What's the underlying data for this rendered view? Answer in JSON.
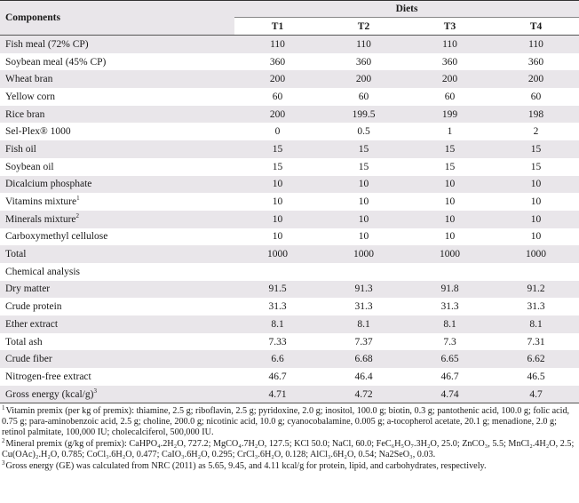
{
  "table": {
    "components_header": "Components",
    "diets_header": "Diets",
    "diet_columns": [
      "T1",
      "T2",
      "T3",
      "T4"
    ],
    "rows": [
      {
        "label": "Fish meal (72% CP)",
        "values": [
          "110",
          "110",
          "110",
          "110"
        ]
      },
      {
        "label": "Soybean meal (45% CP)",
        "values": [
          "360",
          "360",
          "360",
          "360"
        ]
      },
      {
        "label": "Wheat bran",
        "values": [
          "200",
          "200",
          "200",
          "200"
        ]
      },
      {
        "label": "Yellow corn",
        "values": [
          "60",
          "60",
          "60",
          "60"
        ]
      },
      {
        "label": "Rice bran",
        "values": [
          "200",
          "199.5",
          "199",
          "198"
        ]
      },
      {
        "label": "Sel-Plex® 1000",
        "values": [
          "0",
          "0.5",
          "1",
          "2"
        ]
      },
      {
        "label": "Fish oil",
        "values": [
          "15",
          "15",
          "15",
          "15"
        ]
      },
      {
        "label": "Soybean oil",
        "values": [
          "15",
          "15",
          "15",
          "15"
        ]
      },
      {
        "label": "Dicalcium phosphate",
        "values": [
          "10",
          "10",
          "10",
          "10"
        ]
      },
      {
        "label": "Vitamins mixture",
        "sup": "1",
        "values": [
          "10",
          "10",
          "10",
          "10"
        ]
      },
      {
        "label": "Minerals mixture",
        "sup": "2",
        "values": [
          "10",
          "10",
          "10",
          "10"
        ]
      },
      {
        "label": "Carboxymethyl cellulose",
        "values": [
          "10",
          "10",
          "10",
          "10"
        ]
      },
      {
        "label": "Total",
        "values": [
          "1000",
          "1000",
          "1000",
          "1000"
        ]
      },
      {
        "label": "Chemical analysis",
        "values": [
          "",
          "",
          "",
          ""
        ]
      },
      {
        "label": "Dry matter",
        "values": [
          "91.5",
          "91.3",
          "91.8",
          "91.2"
        ]
      },
      {
        "label": "Crude protein",
        "values": [
          "31.3",
          "31.3",
          "31.3",
          "31.3"
        ]
      },
      {
        "label": "Ether extract",
        "values": [
          "8.1",
          "8.1",
          "8.1",
          "8.1"
        ]
      },
      {
        "label": "Total ash",
        "values": [
          "7.33",
          "7.37",
          "7.3",
          "7.31"
        ]
      },
      {
        "label": "Crude fiber",
        "values": [
          "6.6",
          "6.68",
          "6.65",
          "6.62"
        ]
      },
      {
        "label": "Nitrogen-free extract",
        "values": [
          "46.7",
          "46.4",
          "46.7",
          "46.5"
        ]
      },
      {
        "label": "Gross energy (kcal/g)",
        "sup": "3",
        "values": [
          "4.71",
          "4.72",
          "4.74",
          "4.7"
        ]
      }
    ]
  },
  "footnotes": {
    "fn1_mark": "1",
    "fn1": "Vitamin premix (per kg of premix): thiamine, 2.5 g; riboflavin, 2.5 g; pyridoxine, 2.0 g; inositol, 100.0 g; biotin, 0.3 g; pantothenic acid, 100.0 g; folic acid, 0.75 g; para-aminobenzoic acid, 2.5 g; choline, 200.0 g; nicotinic acid, 10.0 g; cyanocobalamine, 0.005 g; a-tocopherol acetate, 20.1 g; menadione, 2.0 g; retinol palmitate, 100,000 IU; cholecalciferol, 500,000 IU.",
    "fn2_mark": "2",
    "fn2_text": "Mineral premix (g/kg of premix): CaHPO₄.2H₂O, 727.2; MgCO₄.7H₂O, 127.5; KCl 50.0; NaCl, 60.0; FeC₆H₅O₇.3H₂O, 25.0; ZnCO₃, 5.5; MnCl₂.4H₂O, 2.5; Cu(OAc)₂.H₂O, 0.785; CoCl₃.6H₂O, 0.477; CaIO₃.6H₂O, 0.295; CrCl₃.6H₂O, 0.128; AlCl₃.6H₂O, 0.54; Na2SeO₃, 0.03.",
    "fn3_mark": "3",
    "fn3": "Gross energy (GE) was calculated from NRC (2011) as 5.65, 9.45, and 4.11 kcal/g for protein, lipid, and carbohydrates, respectively."
  }
}
